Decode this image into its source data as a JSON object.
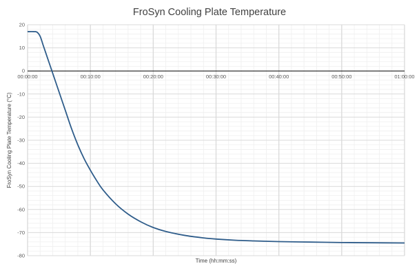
{
  "chart_data": {
    "type": "line",
    "title": "FroSyn Cooling Plate Temperature",
    "xlabel": "Time (hh:mm:ss)",
    "ylabel": "FroSyn Cooling Plate Temperature (°C)",
    "x_unit": "minutes",
    "xlim": [
      0,
      60
    ],
    "ylim": [
      -80,
      20
    ],
    "x_ticks": [
      {
        "value": 0,
        "label": "00:00:00"
      },
      {
        "value": 10,
        "label": "00:10:00"
      },
      {
        "value": 20,
        "label": "00:20:00"
      },
      {
        "value": 30,
        "label": "00:30:00"
      },
      {
        "value": 40,
        "label": "00:40:00"
      },
      {
        "value": 50,
        "label": "00:50:00"
      },
      {
        "value": 60,
        "label": "01:00:00"
      }
    ],
    "y_ticks": [
      20,
      10,
      0,
      -10,
      -20,
      -30,
      -40,
      -50,
      -60,
      -70,
      -80
    ],
    "grid": true,
    "legend": "none",
    "colors": {
      "line": "#2e5c8a",
      "major_grid": "#d9d9d9",
      "minor_grid": "#efefef",
      "zero_axis": "#000000"
    },
    "series": [
      {
        "x": [
          0,
          1,
          1.5,
          2,
          2.5,
          3,
          3.5,
          4,
          4.5,
          5,
          6,
          7,
          8,
          9,
          10,
          11,
          12,
          14,
          16,
          18,
          20,
          22,
          25,
          28,
          30,
          33,
          36,
          40,
          45,
          50,
          55,
          60
        ],
        "y": [
          17,
          17,
          16.8,
          15,
          11,
          7,
          3,
          -1,
          -5,
          -9,
          -17,
          -25,
          -32,
          -38,
          -43,
          -47.5,
          -51.5,
          -57.5,
          -62,
          -65.3,
          -67.8,
          -69.5,
          -71.2,
          -72.3,
          -72.8,
          -73.3,
          -73.6,
          -73.9,
          -74.1,
          -74.3,
          -74.4,
          -74.5
        ]
      }
    ]
  }
}
